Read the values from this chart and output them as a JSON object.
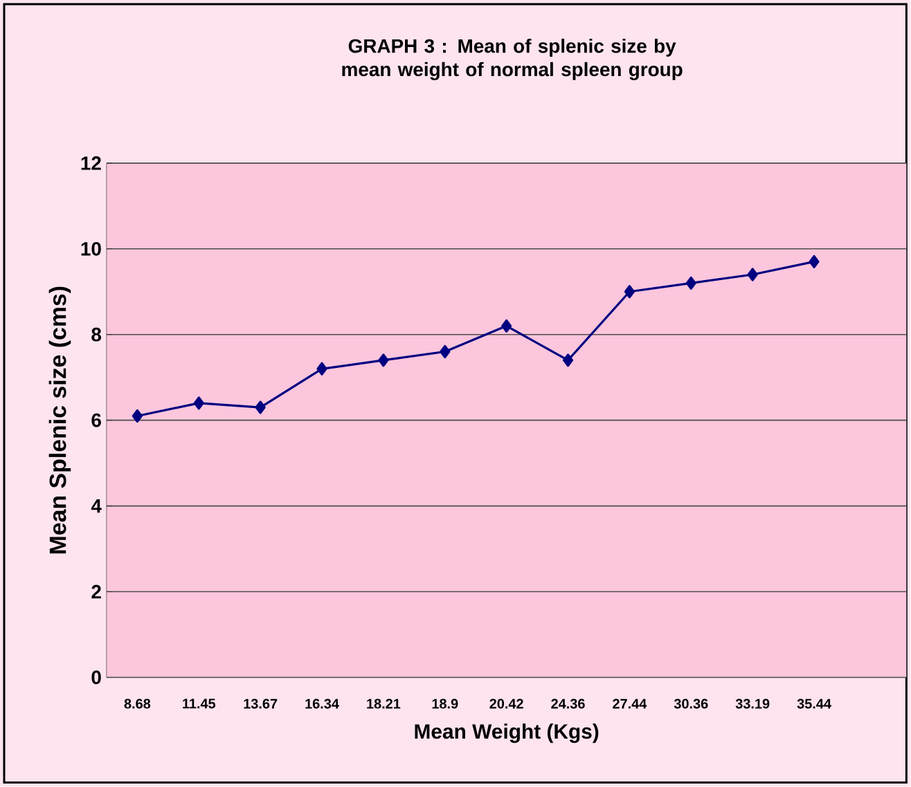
{
  "chart_data": {
    "type": "line",
    "title": "GRAPH  3 : Mean of splenic size by mean weight of normal spleen group",
    "xlabel": "Mean Weight (Kgs)",
    "ylabel": "Mean Splenic size (cms)",
    "categories": [
      "8.68",
      "11.45",
      "13.67",
      "16.34",
      "18.21",
      "18.9",
      "20.42",
      "24.36",
      "27.44",
      "30.36",
      "33.19",
      "35.44",
      null
    ],
    "series": [
      {
        "color": "#000080",
        "values": [
          6.1,
          6.4,
          6.3,
          7.2,
          7.4,
          7.6,
          8.2,
          7.4,
          9.0,
          9.2,
          9.4,
          9.7,
          null
        ]
      }
    ],
    "ylim": [
      0,
      12
    ],
    "yticks": [
      0,
      2,
      4,
      6,
      8,
      10,
      12
    ],
    "grid": "y",
    "marker": "diamond",
    "line_style": "solid"
  }
}
